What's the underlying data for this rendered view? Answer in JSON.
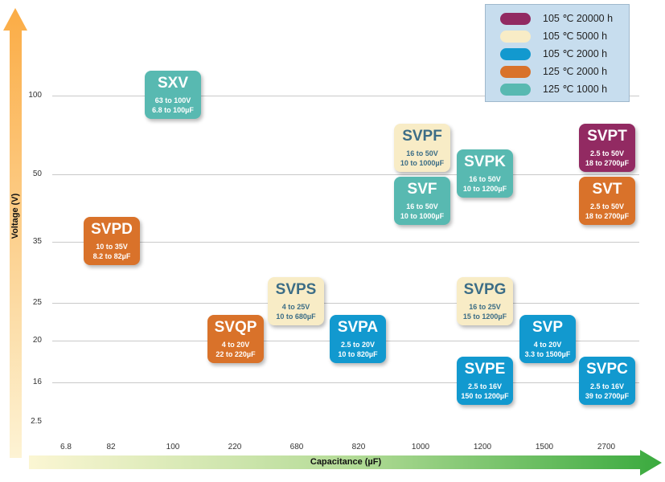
{
  "axes": {
    "y_label": "Voltage (V)",
    "x_label": "Capacitance (µF)",
    "y_ticks": [
      "100",
      "50",
      "35",
      "25",
      "20",
      "16",
      "2.5"
    ],
    "x_ticks": [
      "6.8",
      "82",
      "100",
      "220",
      "680",
      "820",
      "1000",
      "1200",
      "1500",
      "2700"
    ]
  },
  "colors": {
    "purple": "#922a62",
    "cream": "#f8ecc6",
    "blue": "#1299cf",
    "orange": "#d9722a",
    "teal": "#58b9b1",
    "y_arrow": "#fbb04c",
    "x_arrow": "#3aaa3e"
  },
  "legend": [
    {
      "label": "105 ℃ 20000 h",
      "color": "#922a62"
    },
    {
      "label": "105 ℃ 5000 h",
      "color": "#f8ecc6"
    },
    {
      "label": "105 ℃ 2000 h",
      "color": "#1299cf"
    },
    {
      "label": "125 ℃ 2000 h",
      "color": "#d9722a"
    },
    {
      "label": "125 ℃ 1000 h",
      "color": "#58b9b1"
    }
  ],
  "series": {
    "sxv": {
      "name": "SXV",
      "voltage": "63 to 100V",
      "capacitance": "6.8 to 100µF",
      "rating": "125 ℃ 1000 h"
    },
    "svpf": {
      "name": "SVPF",
      "voltage": "16 to 50V",
      "capacitance": "10 to 1000µF",
      "rating": "105 ℃ 5000 h"
    },
    "svf": {
      "name": "SVF",
      "voltage": "16 to 50V",
      "capacitance": "10 to 1000µF",
      "rating": "125 ℃ 1000 h"
    },
    "svpk": {
      "name": "SVPK",
      "voltage": "16 to 50V",
      "capacitance": "10 to 1200µF",
      "rating": "125 ℃ 1000 h"
    },
    "svpt": {
      "name": "SVPT",
      "voltage": "2.5 to 50V",
      "capacitance": "18 to 2700µF",
      "rating": "105 ℃ 20000 h"
    },
    "svt": {
      "name": "SVT",
      "voltage": "2.5 to 50V",
      "capacitance": "18 to 2700µF",
      "rating": "125 ℃ 2000 h"
    },
    "svpd": {
      "name": "SVPD",
      "voltage": "10 to 35V",
      "capacitance": "8.2 to 82µF",
      "rating": "125 ℃ 2000 h"
    },
    "svps": {
      "name": "SVPS",
      "voltage": "4 to 25V",
      "capacitance": "10 to 680µF",
      "rating": "105 ℃ 5000 h"
    },
    "svqp": {
      "name": "SVQP",
      "voltage": "4 to 20V",
      "capacitance": "22 to 220µF",
      "rating": "125 ℃ 2000 h"
    },
    "svpa": {
      "name": "SVPA",
      "voltage": "2.5 to 20V",
      "capacitance": "10 to 820µF",
      "rating": "105 ℃ 2000 h"
    },
    "svpg": {
      "name": "SVPG",
      "voltage": "16 to 25V",
      "capacitance": "15 to 1200µF",
      "rating": "105 ℃ 5000 h"
    },
    "svp": {
      "name": "SVP",
      "voltage": "4 to 20V",
      "capacitance": "3.3 to 1500µF",
      "rating": "105 ℃ 2000 h"
    },
    "svpe": {
      "name": "SVPE",
      "voltage": "2.5 to 16V",
      "capacitance": "150 to 1200µF",
      "rating": "105 ℃ 2000 h"
    },
    "svpc": {
      "name": "SVPC",
      "voltage": "2.5 to 16V",
      "capacitance": "39 to 2700µF",
      "rating": "105 ℃ 2000 h"
    }
  }
}
